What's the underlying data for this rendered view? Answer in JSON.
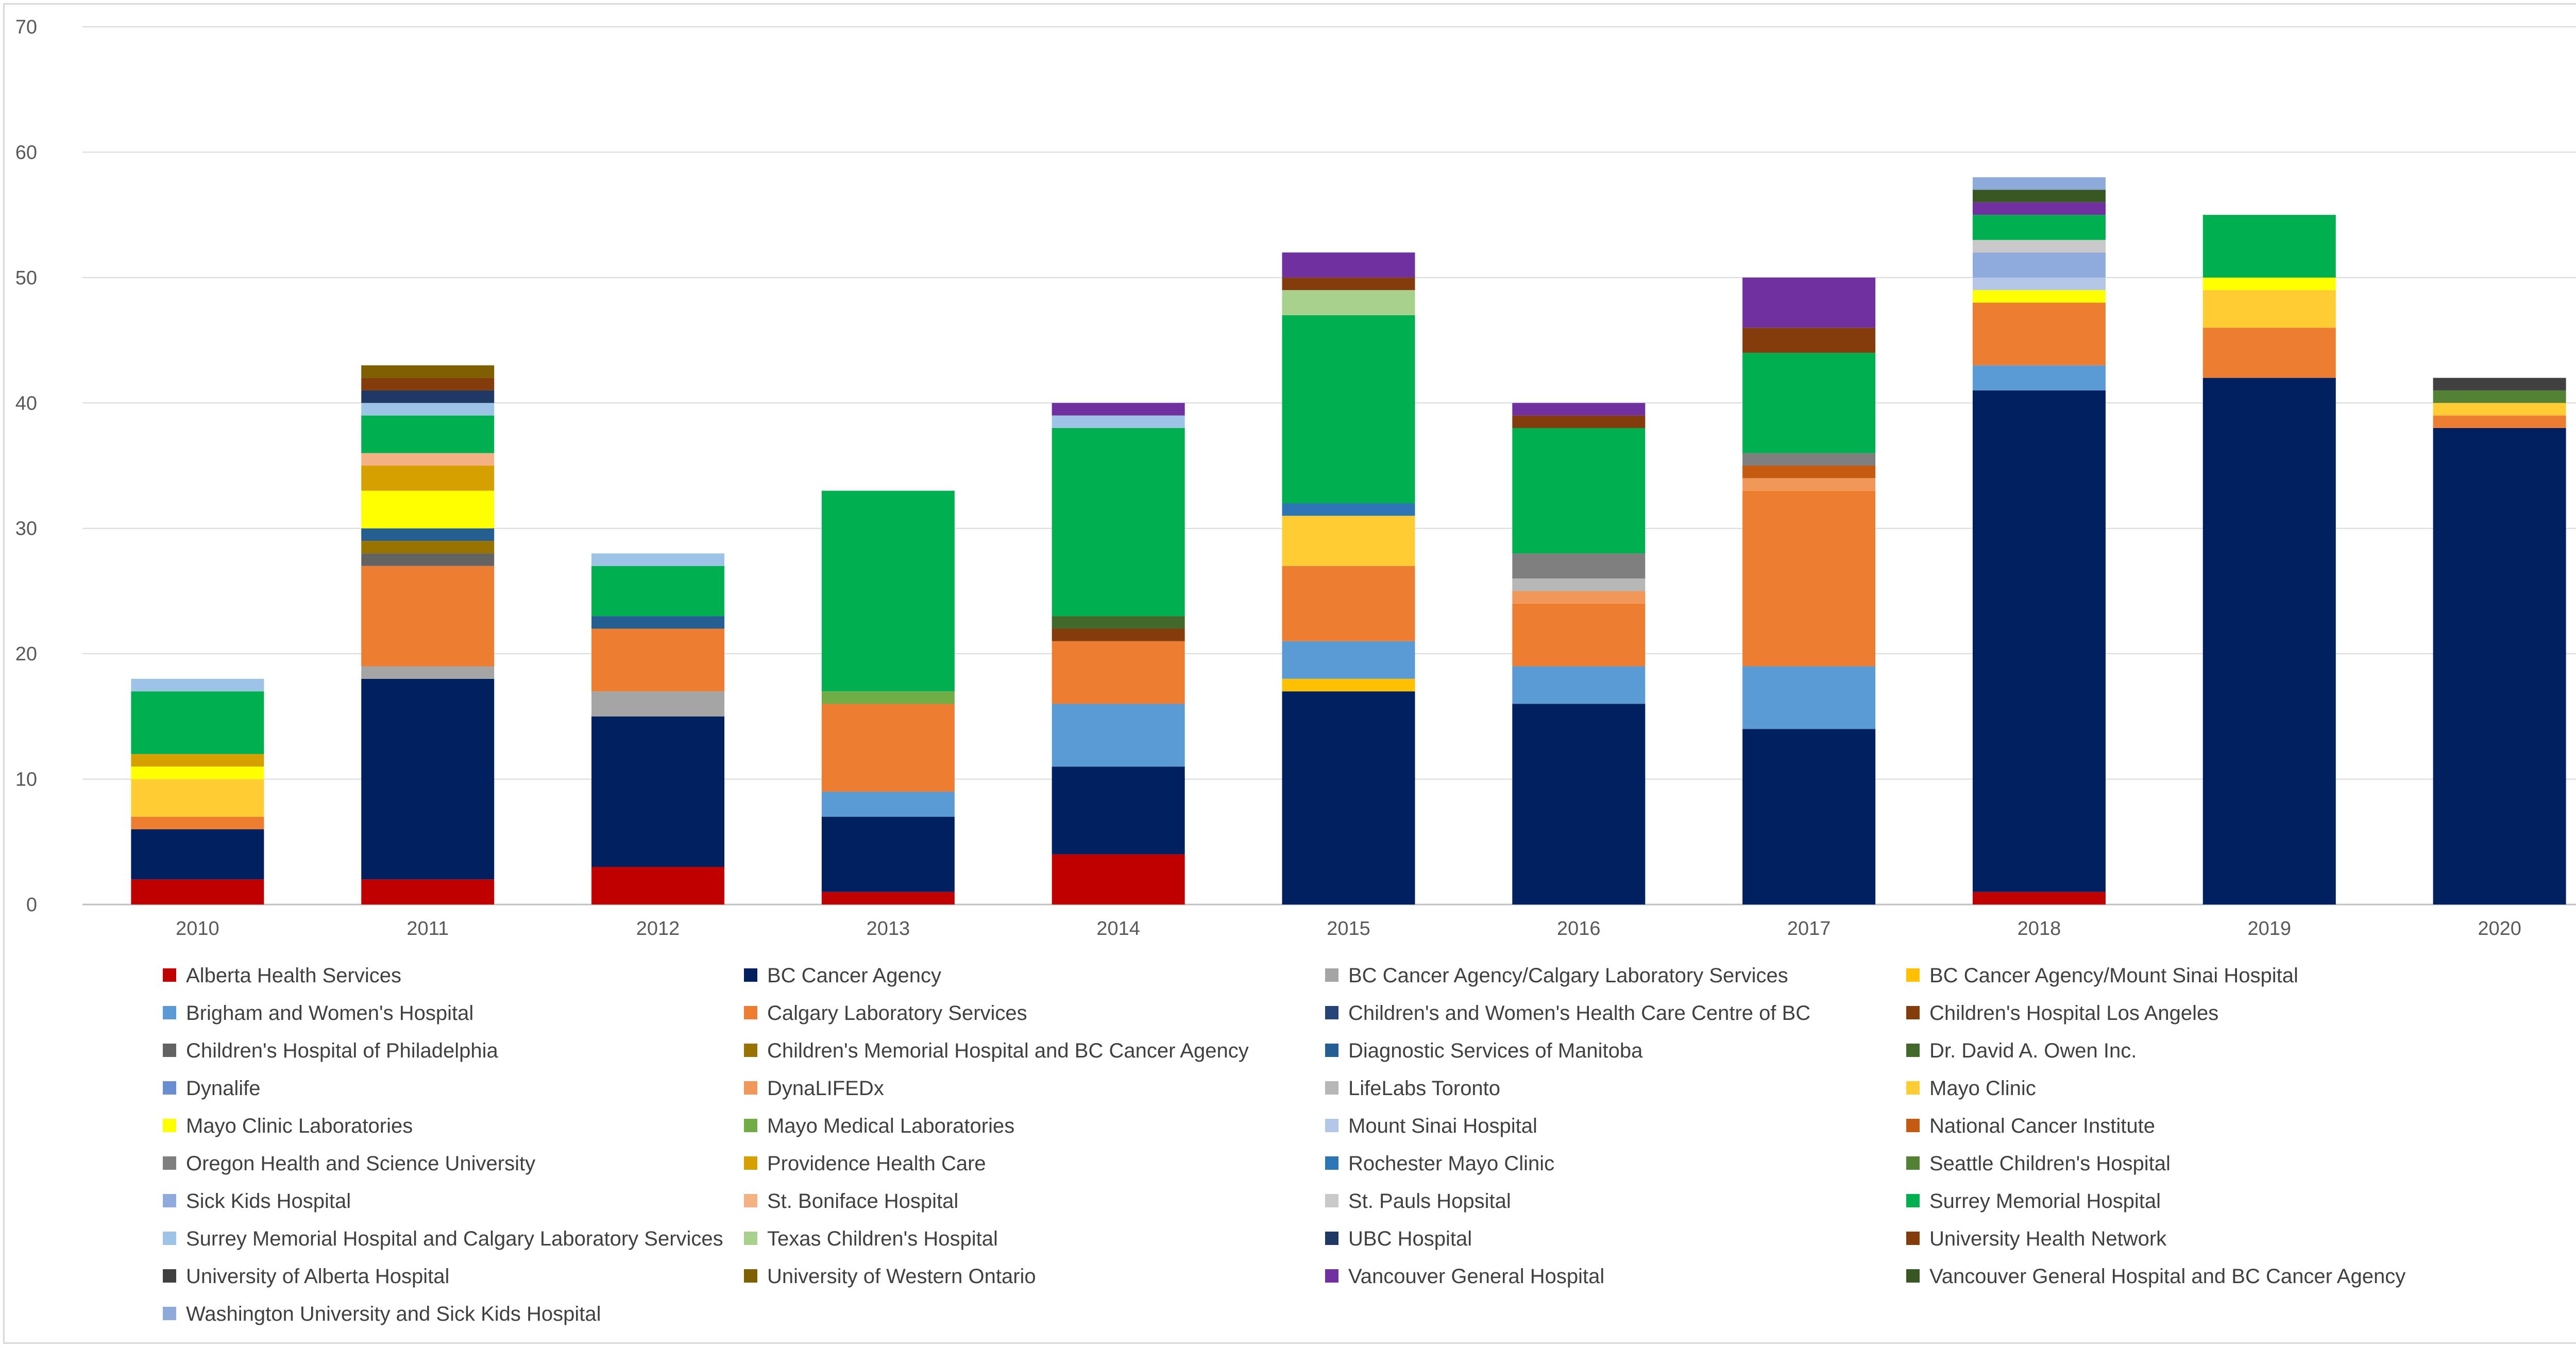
{
  "chart_data": {
    "type": "bar",
    "stacked": true,
    "title": "",
    "xlabel": "",
    "ylabel": "",
    "ylim": [
      0,
      70
    ],
    "yticks": [
      0,
      10,
      20,
      30,
      40,
      50,
      60,
      70
    ],
    "grid": true,
    "legend_position": "bottom",
    "categories": [
      "2010",
      "2011",
      "2012",
      "2013",
      "2014",
      "2015",
      "2016",
      "2017",
      "2018",
      "2019",
      "2020"
    ],
    "series": [
      {
        "name": "Alberta Health Services",
        "color": "#c00000",
        "values": [
          2,
          2,
          3,
          1,
          4,
          0,
          0,
          0,
          1,
          0,
          0
        ]
      },
      {
        "name": "BC Cancer Agency",
        "color": "#002060",
        "values": [
          4,
          16,
          12,
          6,
          7,
          17,
          16,
          14,
          40,
          42,
          38
        ]
      },
      {
        "name": "BC Cancer Agency/Calgary Laboratory Services",
        "color": "#a5a5a5",
        "values": [
          0,
          1,
          2,
          0,
          0,
          0,
          0,
          0,
          0,
          0,
          0
        ]
      },
      {
        "name": "BC Cancer Agency/Mount Sinai Hospital",
        "color": "#ffc000",
        "values": [
          0,
          0,
          0,
          0,
          0,
          1,
          0,
          0,
          0,
          0,
          0
        ]
      },
      {
        "name": "Brigham and Women's Hospital",
        "color": "#5b9bd5",
        "values": [
          0,
          0,
          0,
          2,
          5,
          3,
          3,
          5,
          2,
          0,
          0
        ]
      },
      {
        "name": "Calgary Laboratory Services",
        "color": "#ed7d31",
        "values": [
          1,
          8,
          5,
          7,
          5,
          6,
          5,
          14,
          5,
          4,
          1
        ]
      },
      {
        "name": "Children's and Women's Health Care Centre of BC",
        "color": "#264478",
        "values": [
          0,
          0,
          0,
          0,
          0,
          0,
          0,
          0,
          0,
          0,
          0
        ]
      },
      {
        "name": "Children's Hospital Los Angeles",
        "color": "#843c0c",
        "values": [
          0,
          0,
          0,
          0,
          1,
          0,
          0,
          0,
          0,
          0,
          0
        ]
      },
      {
        "name": "Children's Hospital of Philadelphia",
        "color": "#636363",
        "values": [
          0,
          1,
          0,
          0,
          0,
          0,
          0,
          0,
          0,
          0,
          0
        ]
      },
      {
        "name": "Children's Memorial Hospital and BC Cancer Agency",
        "color": "#997300",
        "values": [
          0,
          1,
          0,
          0,
          0,
          0,
          0,
          0,
          0,
          0,
          0
        ]
      },
      {
        "name": "Diagnostic Services of Manitoba",
        "color": "#255e91",
        "values": [
          0,
          1,
          1,
          0,
          0,
          0,
          0,
          0,
          0,
          0,
          0
        ]
      },
      {
        "name": "Dr. David A. Owen Inc.",
        "color": "#43682b",
        "values": [
          0,
          0,
          0,
          0,
          1,
          0,
          0,
          0,
          0,
          0,
          0
        ]
      },
      {
        "name": "Dynalife",
        "color": "#698ed0",
        "values": [
          0,
          0,
          0,
          0,
          0,
          0,
          0,
          0,
          0,
          0,
          0
        ]
      },
      {
        "name": "DynaLIFEDx",
        "color": "#f1975a",
        "values": [
          0,
          0,
          0,
          0,
          0,
          0,
          1,
          1,
          0,
          0,
          0
        ]
      },
      {
        "name": "LifeLabs Toronto",
        "color": "#b7b7b7",
        "values": [
          0,
          0,
          0,
          0,
          0,
          0,
          1,
          0,
          0,
          0,
          0
        ]
      },
      {
        "name": "Mayo Clinic",
        "color": "#ffcd33",
        "values": [
          3,
          0,
          0,
          0,
          0,
          4,
          0,
          0,
          0,
          3,
          1
        ]
      },
      {
        "name": "Mayo Clinic Laboratories",
        "color": "#ffff00",
        "values": [
          1,
          3,
          0,
          0,
          0,
          0,
          0,
          0,
          1,
          1,
          0
        ]
      },
      {
        "name": "Mayo Medical Laboratories",
        "color": "#70ad47",
        "values": [
          0,
          0,
          0,
          1,
          0,
          0,
          0,
          0,
          0,
          0,
          0
        ]
      },
      {
        "name": "Mount Sinai Hospital",
        "color": "#b4c7e7",
        "values": [
          0,
          0,
          0,
          0,
          0,
          0,
          0,
          0,
          1,
          0,
          0
        ]
      },
      {
        "name": "National Cancer Institute",
        "color": "#c55a11",
        "values": [
          0,
          0,
          0,
          0,
          0,
          0,
          0,
          1,
          0,
          0,
          0
        ]
      },
      {
        "name": "Oregon Health and Science University",
        "color": "#7f7f7f",
        "values": [
          0,
          0,
          0,
          0,
          0,
          0,
          2,
          1,
          0,
          0,
          0
        ]
      },
      {
        "name": "Providence Health Care",
        "color": "#d6a100",
        "values": [
          1,
          2,
          0,
          0,
          0,
          0,
          0,
          0,
          0,
          0,
          0
        ]
      },
      {
        "name": "Rochester Mayo Clinic",
        "color": "#2e75b6",
        "values": [
          0,
          0,
          0,
          0,
          0,
          1,
          0,
          0,
          0,
          0,
          0
        ]
      },
      {
        "name": "Seattle Children's Hospital",
        "color": "#548235",
        "values": [
          0,
          0,
          0,
          0,
          0,
          0,
          0,
          0,
          0,
          0,
          1
        ]
      },
      {
        "name": "Sick Kids Hospital",
        "color": "#8faadc",
        "values": [
          0,
          0,
          0,
          0,
          0,
          0,
          0,
          0,
          2,
          0,
          0
        ]
      },
      {
        "name": "St. Boniface Hospital",
        "color": "#f4b183",
        "values": [
          0,
          1,
          0,
          0,
          0,
          0,
          0,
          0,
          0,
          0,
          0
        ]
      },
      {
        "name": "St. Pauls Hopsital",
        "color": "#c9c9c9",
        "values": [
          0,
          0,
          0,
          0,
          0,
          0,
          0,
          0,
          1,
          0,
          0
        ]
      },
      {
        "name": "Surrey Memorial Hospital",
        "color": "#00b050",
        "values": [
          5,
          3,
          4,
          16,
          15,
          15,
          10,
          8,
          2,
          5,
          0
        ]
      },
      {
        "name": "Surrey Memorial Hospital and Calgary Laboratory Services",
        "color": "#9dc3e6",
        "values": [
          1,
          1,
          1,
          0,
          1,
          0,
          0,
          0,
          0,
          0,
          0
        ]
      },
      {
        "name": "Texas Children's Hospital",
        "color": "#a9d18e",
        "values": [
          0,
          0,
          0,
          0,
          0,
          2,
          0,
          0,
          0,
          0,
          0
        ]
      },
      {
        "name": "UBC Hospital",
        "color": "#203864",
        "values": [
          0,
          1,
          0,
          0,
          0,
          0,
          0,
          0,
          0,
          0,
          0
        ]
      },
      {
        "name": "University Health Network",
        "color": "#843c0c",
        "values": [
          0,
          1,
          0,
          0,
          0,
          1,
          1,
          2,
          0,
          0,
          0
        ]
      },
      {
        "name": "University of Alberta Hospital",
        "color": "#404040",
        "values": [
          0,
          0,
          0,
          0,
          0,
          0,
          0,
          0,
          0,
          0,
          1
        ]
      },
      {
        "name": "University of Western Ontario",
        "color": "#7f6000",
        "values": [
          0,
          1,
          0,
          0,
          0,
          0,
          0,
          0,
          0,
          0,
          0
        ]
      },
      {
        "name": "Vancouver General Hospital",
        "color": "#7030a0",
        "values": [
          0,
          0,
          0,
          0,
          1,
          2,
          1,
          4,
          1,
          0,
          0
        ]
      },
      {
        "name": " Vancouver General Hospital and BC Cancer Agency",
        "color": "#385723",
        "values": [
          0,
          0,
          0,
          0,
          0,
          0,
          0,
          0,
          1,
          0,
          0
        ]
      },
      {
        "name": "Washington University and Sick Kids Hospital",
        "color": "#8eaadb",
        "values": [
          0,
          0,
          0,
          0,
          0,
          0,
          0,
          0,
          1,
          0,
          0
        ]
      }
    ]
  }
}
